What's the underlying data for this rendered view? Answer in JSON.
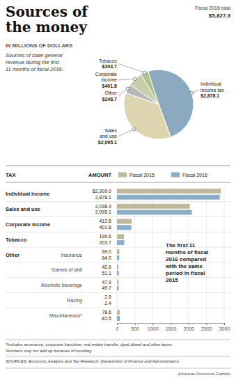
{
  "chart_data": [
    {
      "type": "pie",
      "title": "Sources of\nthe money",
      "subtitle": "IN MILLIONS OF DOLLARS",
      "annotations": [
        "Sources of state general\nrevenue during the first\n11 months of fiscal 2016.",
        "Fiscal 2016 total",
        "$5,827.3"
      ],
      "categories": [
        "Individual\nincome tax",
        "Sales\nand use",
        "Other",
        "Corporate\nincome",
        "Tobacco"
      ],
      "values": [
        2878.1,
        2095.1,
        248.7,
        401.8,
        203.7
      ],
      "value_labels": [
        "$2,878.1",
        "$2,095.1",
        "$248.7",
        "$401.8",
        "$203.7"
      ],
      "colors": [
        "#8baabf",
        "#ddd5b0",
        "#b8b8b8",
        "#c8ceaa",
        "#aac490"
      ],
      "data_labels": true
    },
    {
      "type": "bar",
      "orientation": "horizontal",
      "categories": [
        "Individual income",
        "Sales and use",
        "Corporate income",
        "Tobacco",
        "Insurance",
        "Games of skill",
        "Alcoholic beverage",
        "Racing",
        "Miscellaneous*"
      ],
      "series": [
        {
          "name": "Fiscal 2015",
          "color": "#c0b89a",
          "values": [
            2909.0,
            2038.4,
            412.8,
            199.6,
            69.0,
            42.6,
            47.9,
            2.5,
            78.6
          ],
          "value_labels": [
            "$2,909.0",
            "2,038.4",
            "412.8",
            "199.6",
            "69.0",
            "42.6",
            "47.9",
            "2.5",
            "78.6"
          ]
        },
        {
          "name": "Fiscal 2016",
          "color": "#8aaec8",
          "values": [
            2878.1,
            2095.1,
            401.8,
            203.7,
            64.0,
            51.1,
            49.7,
            2.4,
            81.5
          ],
          "value_labels": [
            "2,878.1",
            "2,095.1",
            "401.8",
            "203.7",
            "64.0",
            "51.1",
            "49.7",
            "2.4",
            "81.5"
          ]
        }
      ],
      "xlim": [
        0,
        3000
      ],
      "xticks": [
        0,
        500,
        1000,
        1500,
        2000,
        2500,
        3000
      ],
      "grid": true,
      "legend": "top",
      "data_labels": true,
      "annotations": [
        "TAX",
        "AMOUNT",
        "Other",
        "The first 11\nmonths of fiscal\n2016 compared\nwith the same\nperiod in fiscal\n2015"
      ],
      "notes": [
        "*Includes severance, corporate franchise, real estate transfer, dyed diesel and other taxes.",
        "Numbers may not add up because of rounding.",
        "SOURCES: Economic Analysis and Tax Research, Department of Finance and Administration",
        "Arkansas Democrat-Gazette"
      ]
    }
  ]
}
